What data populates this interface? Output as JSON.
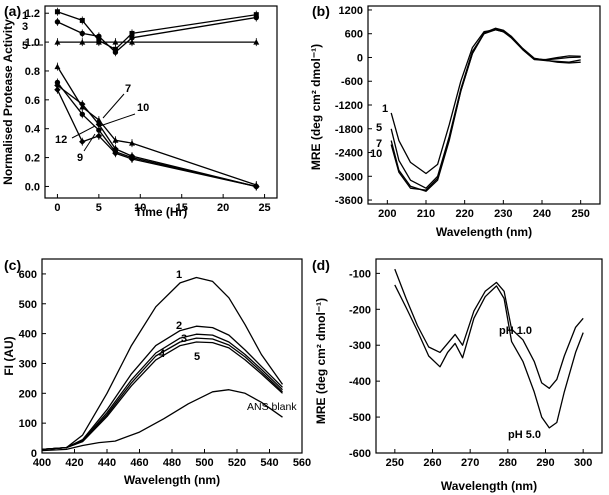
{
  "chart_data": [
    {
      "panel": "(a)",
      "type": "line",
      "xlabel": "Time (Hr)",
      "ylabel": "Normalised Protease Activity",
      "xlim": [
        -1.5,
        26.5
      ],
      "ylim": [
        -0.08,
        1.25
      ],
      "xticks": [
        "0",
        "5",
        "10",
        "15",
        "20",
        "25"
      ],
      "yticks": [
        "0.0",
        "0.2",
        "0.4",
        "0.6",
        "0.8",
        "1.0",
        "1.2"
      ],
      "series": [
        {
          "name": "1",
          "x": [
            0,
            3,
            5,
            7,
            9,
            24
          ],
          "y": [
            1.21,
            1.15,
            1.01,
            0.95,
            1.06,
            1.19
          ]
        },
        {
          "name": "3",
          "x": [
            0,
            3,
            5,
            7,
            9,
            24
          ],
          "y": [
            1.14,
            1.06,
            1.04,
            0.93,
            1.03,
            1.17
          ]
        },
        {
          "name": "5",
          "x": [
            0,
            3,
            5,
            7,
            9,
            24
          ],
          "y": [
            1.0,
            1.0,
            1.0,
            1.0,
            1.0,
            1.0
          ]
        },
        {
          "name": "7",
          "x": [
            0,
            3,
            5,
            7,
            9,
            24
          ],
          "y": [
            0.83,
            0.55,
            0.46,
            0.32,
            0.3,
            0.01
          ]
        },
        {
          "name": "10",
          "x": [
            0,
            3,
            5,
            7,
            9,
            24
          ],
          "y": [
            0.7,
            0.57,
            0.43,
            0.26,
            0.21,
            0.0
          ]
        },
        {
          "name": "12",
          "x": [
            0,
            3,
            5,
            7,
            9,
            24
          ],
          "y": [
            0.72,
            0.5,
            0.39,
            0.24,
            0.2,
            0.0
          ]
        },
        {
          "name": "9",
          "x": [
            0,
            3,
            5,
            7,
            9,
            24
          ],
          "y": [
            0.67,
            0.31,
            0.35,
            0.23,
            0.19,
            0.0
          ]
        }
      ]
    },
    {
      "panel": "(b)",
      "type": "line",
      "xlabel": "Wavelength (nm)",
      "ylabel": "MRE (deg cm² dmol⁻¹)",
      "xlim": [
        195,
        255
      ],
      "ylim": [
        -3700,
        1300
      ],
      "xticks": [
        "200",
        "210",
        "220",
        "230",
        "240",
        "250"
      ],
      "yticks": [
        "1200",
        "600",
        "0",
        "-600",
        "-1200",
        "-1800",
        "-2400",
        "-3000",
        "-3600"
      ],
      "series": [
        {
          "name": "1",
          "x": [
            201,
            203,
            206,
            210,
            213,
            216,
            219,
            222,
            225,
            228,
            230,
            232,
            235,
            238,
            241,
            244,
            247,
            250
          ],
          "y": [
            -1400,
            -2100,
            -2650,
            -2930,
            -2700,
            -1700,
            -600,
            250,
            650,
            700,
            650,
            500,
            200,
            -50,
            -50,
            0,
            40,
            30
          ]
        },
        {
          "name": "5",
          "x": [
            201,
            203,
            206,
            210,
            213,
            216,
            219,
            222,
            225,
            228,
            230,
            232,
            235,
            238,
            241,
            244,
            247,
            250
          ],
          "y": [
            -1800,
            -2600,
            -3100,
            -3300,
            -3000,
            -2000,
            -800,
            150,
            600,
            700,
            650,
            520,
            220,
            -30,
            -60,
            -30,
            0,
            10
          ]
        },
        {
          "name": "7",
          "x": [
            201,
            203,
            206,
            210,
            213,
            216,
            219,
            222,
            225,
            228,
            230,
            232,
            235,
            238,
            241,
            244,
            247,
            250
          ],
          "y": [
            -2100,
            -2850,
            -3250,
            -3380,
            -3100,
            -2100,
            -850,
            100,
            600,
            720,
            670,
            520,
            200,
            -50,
            -80,
            -100,
            -120,
            -60
          ]
        },
        {
          "name": "10",
          "x": [
            201,
            203,
            206,
            210,
            213,
            216,
            219,
            222,
            225,
            228,
            230,
            232,
            235,
            238,
            241,
            244,
            247,
            250
          ],
          "y": [
            -2200,
            -2900,
            -3300,
            -3350,
            -3050,
            -2050,
            -850,
            100,
            620,
            740,
            690,
            540,
            230,
            -20,
            -70,
            -120,
            -140,
            -120
          ]
        }
      ]
    },
    {
      "panel": "(c)",
      "type": "line",
      "xlabel": "Wavelength (nm)",
      "ylabel": "FI (AU)",
      "xlim": [
        400,
        560
      ],
      "ylim": [
        0,
        650
      ],
      "xticks": [
        "400",
        "420",
        "440",
        "460",
        "480",
        "500",
        "520",
        "540",
        "560"
      ],
      "yticks": [
        "0",
        "100",
        "200",
        "300",
        "400",
        "500",
        "600"
      ],
      "series": [
        {
          "name": "1",
          "x": [
            400,
            415,
            425,
            440,
            455,
            470,
            485,
            495,
            505,
            515,
            525,
            535,
            548
          ],
          "y": [
            12,
            18,
            60,
            200,
            360,
            490,
            570,
            588,
            575,
            520,
            430,
            330,
            230
          ]
        },
        {
          "name": "2",
          "x": [
            400,
            415,
            425,
            440,
            455,
            470,
            485,
            495,
            505,
            515,
            525,
            535,
            548
          ],
          "y": [
            12,
            18,
            45,
            145,
            265,
            360,
            410,
            425,
            420,
            395,
            345,
            290,
            220
          ]
        },
        {
          "name": "3",
          "x": [
            400,
            415,
            425,
            440,
            455,
            470,
            485,
            495,
            505,
            515,
            525,
            535,
            548
          ],
          "y": [
            12,
            18,
            42,
            135,
            245,
            335,
            385,
            398,
            395,
            372,
            330,
            280,
            212
          ]
        },
        {
          "name": "4",
          "x": [
            400,
            415,
            425,
            440,
            455,
            470,
            485,
            495,
            505,
            515,
            525,
            535,
            548
          ],
          "y": [
            12,
            18,
            40,
            128,
            235,
            325,
            372,
            385,
            382,
            362,
            322,
            272,
            205
          ]
        },
        {
          "name": "5",
          "x": [
            400,
            415,
            425,
            440,
            455,
            470,
            485,
            495,
            505,
            515,
            525,
            535,
            548
          ],
          "y": [
            12,
            18,
            38,
            122,
            225,
            312,
            360,
            372,
            370,
            352,
            312,
            265,
            200
          ]
        },
        {
          "name": "ANS blank",
          "x": [
            400,
            415,
            425,
            435,
            445,
            460,
            475,
            490,
            505,
            515,
            525,
            535,
            548
          ],
          "y": [
            8,
            12,
            25,
            35,
            40,
            70,
            115,
            165,
            205,
            212,
            200,
            170,
            120
          ]
        }
      ]
    },
    {
      "panel": "(d)",
      "type": "line",
      "xlabel": "Wavelength (nm)",
      "ylabel": "MRE (deg cm² dmol⁻¹)",
      "xlim": [
        245,
        305
      ],
      "ylim": [
        -600,
        -60
      ],
      "xticks": [
        "250",
        "260",
        "270",
        "280",
        "290",
        "300"
      ],
      "yticks": [
        "-100",
        "-200",
        "-300",
        "-400",
        "-500",
        "-600"
      ],
      "series": [
        {
          "name": "pH 1.0",
          "x": [
            250,
            253,
            256,
            259,
            262,
            264,
            266,
            268,
            271,
            274,
            277,
            279,
            281,
            284,
            287,
            289,
            291,
            293,
            295,
            298,
            300
          ],
          "y": [
            -88,
            -170,
            -245,
            -305,
            -320,
            -295,
            -270,
            -300,
            -205,
            -150,
            -125,
            -150,
            -255,
            -285,
            -345,
            -405,
            -420,
            -395,
            -330,
            -250,
            -225
          ]
        },
        {
          "name": "pH 5.0",
          "x": [
            250,
            253,
            256,
            259,
            262,
            264,
            266,
            268,
            271,
            274,
            277,
            279,
            281,
            284,
            287,
            289,
            291,
            293,
            295,
            298,
            300
          ],
          "y": [
            -132,
            -195,
            -260,
            -330,
            -360,
            -320,
            -295,
            -335,
            -225,
            -165,
            -135,
            -170,
            -290,
            -345,
            -430,
            -500,
            -530,
            -515,
            -430,
            -320,
            -265
          ]
        }
      ]
    }
  ]
}
